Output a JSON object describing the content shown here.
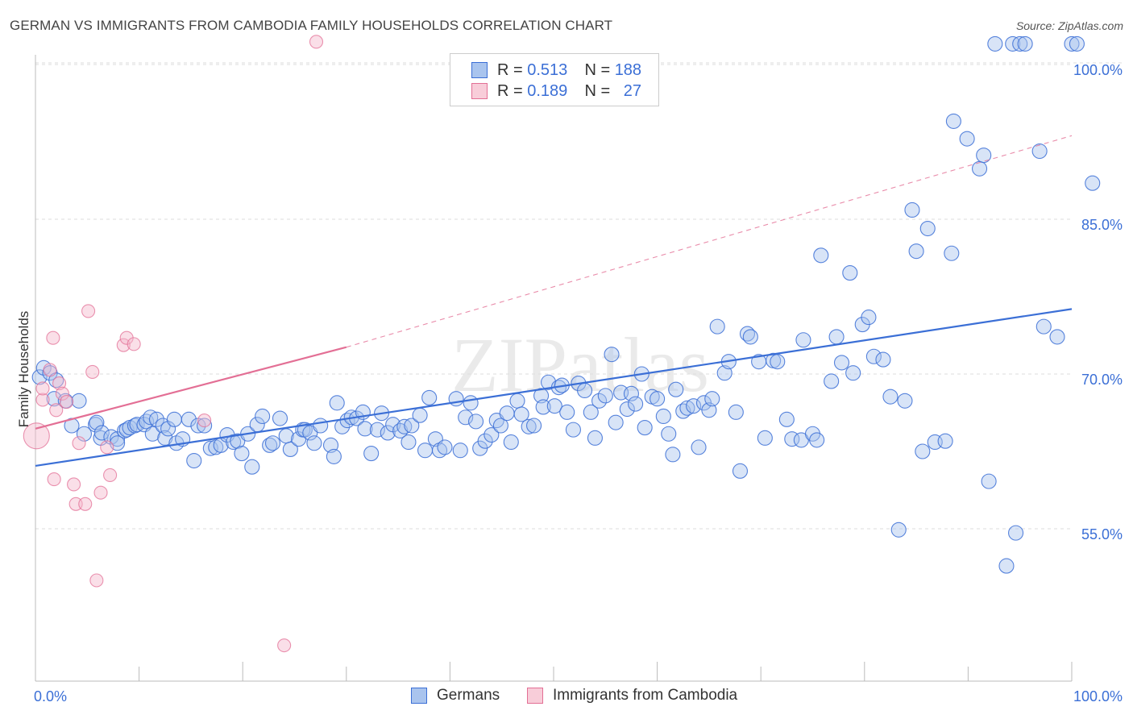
{
  "title": "GERMAN VS IMMIGRANTS FROM CAMBODIA FAMILY HOUSEHOLDS CORRELATION CHART",
  "source": "Source: ZipAtlas.com",
  "watermark": "ZIPatlas",
  "legend": {
    "r_label": "R =",
    "n_label": "N =",
    "germans": {
      "r": "0.513",
      "n": "188"
    },
    "cambodia": {
      "r": "0.189",
      "n": "27"
    }
  },
  "bottom_legend": {
    "germans": "Germans",
    "cambodia": "Immigrants from Cambodia"
  },
  "colors": {
    "blue": "#3b6fd6",
    "blue_fill": "#a9c4ee",
    "pink": "#e36f95",
    "pink_fill": "#f4b8cb",
    "grid": "#dddddd"
  },
  "chart_data": {
    "type": "scatter",
    "title": "GERMAN VS IMMIGRANTS FROM CAMBODIA FAMILY HOUSEHOLDS CORRELATION CHART",
    "xlabel": "",
    "ylabel": "Family Households",
    "xlim": [
      0,
      100
    ],
    "ylim": [
      40,
      102
    ],
    "x_tick_labels": [
      "0.0%",
      "100.0%"
    ],
    "y_ticks": [
      55,
      70,
      85,
      100
    ],
    "y_tick_labels": [
      "55.0%",
      "70.0%",
      "85.0%",
      "100.0%"
    ],
    "series": [
      {
        "name": "Germans",
        "color": "#3b6fd6",
        "trend": {
          "x": [
            0,
            100
          ],
          "y": [
            61.1,
            76.3
          ]
        },
        "points": [
          [
            0.4,
            69.7
          ],
          [
            0.8,
            70.6
          ],
          [
            1.4,
            70.1
          ],
          [
            1.8,
            67.6
          ],
          [
            2.0,
            69.4
          ],
          [
            2.9,
            67.4
          ],
          [
            3.5,
            65.0
          ],
          [
            4.2,
            67.4
          ],
          [
            4.7,
            64.2
          ],
          [
            5.8,
            65.1
          ],
          [
            5.9,
            65.3
          ],
          [
            6.3,
            63.8
          ],
          [
            6.4,
            64.3
          ],
          [
            7.3,
            63.9
          ],
          [
            7.9,
            63.7
          ],
          [
            7.9,
            63.3
          ],
          [
            8.6,
            64.5
          ],
          [
            8.8,
            64.6
          ],
          [
            9.1,
            64.8
          ],
          [
            9.6,
            65.0
          ],
          [
            9.8,
            65.1
          ],
          [
            10.5,
            65.1
          ],
          [
            10.7,
            65.4
          ],
          [
            11.1,
            65.8
          ],
          [
            11.3,
            64.2
          ],
          [
            11.7,
            65.6
          ],
          [
            12.3,
            65.0
          ],
          [
            12.5,
            63.8
          ],
          [
            12.8,
            64.7
          ],
          [
            13.4,
            65.6
          ],
          [
            13.6,
            63.3
          ],
          [
            14.2,
            63.7
          ],
          [
            14.8,
            65.6
          ],
          [
            15.3,
            61.6
          ],
          [
            15.7,
            65.0
          ],
          [
            16.3,
            65.0
          ],
          [
            16.9,
            62.8
          ],
          [
            17.4,
            62.9
          ],
          [
            17.9,
            63.1
          ],
          [
            18.5,
            64.1
          ],
          [
            19.1,
            63.4
          ],
          [
            19.5,
            63.5
          ],
          [
            19.9,
            62.3
          ],
          [
            20.5,
            64.2
          ],
          [
            20.9,
            61.0
          ],
          [
            21.4,
            65.1
          ],
          [
            21.9,
            65.9
          ],
          [
            22.6,
            63.1
          ],
          [
            22.9,
            63.3
          ],
          [
            23.6,
            65.7
          ],
          [
            24.2,
            64.0
          ],
          [
            24.6,
            62.7
          ],
          [
            25.4,
            63.7
          ],
          [
            25.8,
            64.6
          ],
          [
            26.0,
            64.6
          ],
          [
            26.5,
            64.3
          ],
          [
            26.9,
            63.3
          ],
          [
            27.5,
            65.0
          ],
          [
            28.5,
            63.1
          ],
          [
            28.8,
            62.0
          ],
          [
            29.1,
            67.2
          ],
          [
            29.6,
            64.9
          ],
          [
            30.1,
            65.5
          ],
          [
            30.5,
            65.8
          ],
          [
            31.0,
            65.7
          ],
          [
            31.6,
            66.3
          ],
          [
            31.8,
            64.7
          ],
          [
            32.4,
            62.3
          ],
          [
            33.0,
            64.6
          ],
          [
            33.4,
            66.2
          ],
          [
            34.0,
            64.3
          ],
          [
            34.5,
            65.1
          ],
          [
            35.2,
            64.5
          ],
          [
            35.6,
            64.9
          ],
          [
            36.0,
            63.4
          ],
          [
            36.3,
            65.0
          ],
          [
            37.1,
            66.0
          ],
          [
            37.6,
            62.6
          ],
          [
            38.0,
            67.7
          ],
          [
            38.6,
            63.7
          ],
          [
            39.0,
            62.6
          ],
          [
            39.5,
            62.9
          ],
          [
            40.6,
            67.6
          ],
          [
            41.0,
            62.6
          ],
          [
            41.5,
            65.8
          ],
          [
            42.0,
            67.2
          ],
          [
            42.5,
            65.4
          ],
          [
            42.9,
            62.8
          ],
          [
            43.4,
            63.5
          ],
          [
            44.0,
            64.1
          ],
          [
            44.5,
            65.5
          ],
          [
            44.9,
            65.0
          ],
          [
            45.5,
            66.2
          ],
          [
            45.9,
            63.4
          ],
          [
            46.5,
            67.4
          ],
          [
            46.9,
            66.1
          ],
          [
            47.6,
            64.9
          ],
          [
            48.1,
            65.0
          ],
          [
            48.8,
            67.9
          ],
          [
            49.0,
            66.8
          ],
          [
            49.5,
            69.2
          ],
          [
            50.1,
            66.9
          ],
          [
            50.5,
            68.7
          ],
          [
            50.8,
            68.9
          ],
          [
            51.3,
            66.3
          ],
          [
            51.9,
            64.6
          ],
          [
            52.4,
            69.1
          ],
          [
            53.0,
            68.4
          ],
          [
            53.6,
            66.3
          ],
          [
            54.0,
            63.8
          ],
          [
            54.4,
            67.4
          ],
          [
            55.0,
            67.9
          ],
          [
            55.6,
            71.9
          ],
          [
            56.0,
            65.3
          ],
          [
            56.5,
            68.2
          ],
          [
            57.1,
            66.6
          ],
          [
            57.5,
            68.1
          ],
          [
            57.9,
            67.1
          ],
          [
            58.5,
            70.0
          ],
          [
            58.8,
            64.8
          ],
          [
            59.5,
            67.8
          ],
          [
            60.0,
            67.6
          ],
          [
            60.6,
            65.9
          ],
          [
            61.1,
            64.2
          ],
          [
            61.5,
            62.2
          ],
          [
            61.8,
            68.5
          ],
          [
            62.5,
            66.4
          ],
          [
            62.9,
            66.7
          ],
          [
            63.5,
            66.9
          ],
          [
            64.0,
            62.9
          ],
          [
            64.5,
            67.2
          ],
          [
            65.0,
            66.5
          ],
          [
            65.3,
            67.6
          ],
          [
            65.8,
            74.6
          ],
          [
            66.5,
            70.1
          ],
          [
            66.9,
            71.2
          ],
          [
            67.6,
            66.3
          ],
          [
            68.0,
            60.6
          ],
          [
            68.7,
            73.9
          ],
          [
            69.0,
            73.6
          ],
          [
            69.8,
            71.2
          ],
          [
            70.4,
            63.8
          ],
          [
            71.2,
            71.3
          ],
          [
            71.6,
            71.2
          ],
          [
            72.5,
            65.6
          ],
          [
            73.0,
            63.7
          ],
          [
            73.9,
            63.6
          ],
          [
            74.1,
            73.3
          ],
          [
            75.0,
            64.2
          ],
          [
            75.4,
            63.6
          ],
          [
            75.8,
            81.5
          ],
          [
            76.8,
            69.3
          ],
          [
            77.3,
            73.6
          ],
          [
            77.8,
            71.1
          ],
          [
            78.6,
            79.8
          ],
          [
            78.9,
            70.1
          ],
          [
            79.8,
            74.8
          ],
          [
            80.4,
            75.5
          ],
          [
            80.9,
            71.7
          ],
          [
            81.8,
            71.4
          ],
          [
            82.5,
            67.8
          ],
          [
            83.3,
            54.9
          ],
          [
            83.9,
            67.4
          ],
          [
            84.6,
            85.9
          ],
          [
            85.0,
            81.9
          ],
          [
            85.6,
            62.5
          ],
          [
            86.1,
            84.1
          ],
          [
            86.8,
            63.4
          ],
          [
            87.8,
            63.5
          ],
          [
            88.4,
            81.7
          ],
          [
            88.6,
            94.5
          ],
          [
            89.9,
            92.8
          ],
          [
            91.1,
            89.9
          ],
          [
            91.5,
            91.2
          ],
          [
            92.0,
            59.6
          ],
          [
            92.6,
            102.0
          ],
          [
            93.7,
            51.4
          ],
          [
            94.3,
            102.0
          ],
          [
            94.6,
            54.6
          ],
          [
            95.0,
            102.0
          ],
          [
            95.5,
            102.0
          ],
          [
            96.9,
            91.6
          ],
          [
            97.3,
            74.6
          ],
          [
            98.6,
            73.6
          ],
          [
            100.0,
            102.0
          ],
          [
            100.5,
            102.0
          ],
          [
            102.0,
            88.5
          ]
        ]
      },
      {
        "name": "Immigrants from Cambodia",
        "color": "#e36f95",
        "trend": {
          "x": [
            0,
            30
          ],
          "y": [
            64.7,
            72.6
          ]
        },
        "trend_dashed": {
          "x": [
            30,
            100
          ],
          "y": [
            72.6,
            93.1
          ]
        },
        "points": [
          [
            0.1,
            64.0
          ],
          [
            0.7,
            67.5
          ],
          [
            0.7,
            68.6
          ],
          [
            1.4,
            70.4
          ],
          [
            1.7,
            73.5
          ],
          [
            1.8,
            59.8
          ],
          [
            2.0,
            66.5
          ],
          [
            2.3,
            69.1
          ],
          [
            2.6,
            68.1
          ],
          [
            3.0,
            67.3
          ],
          [
            3.7,
            59.3
          ],
          [
            3.9,
            57.4
          ],
          [
            4.2,
            63.3
          ],
          [
            4.8,
            57.4
          ],
          [
            5.1,
            76.1
          ],
          [
            5.5,
            70.2
          ],
          [
            5.9,
            50.0
          ],
          [
            6.3,
            58.5
          ],
          [
            6.9,
            62.9
          ],
          [
            7.2,
            60.2
          ],
          [
            8.5,
            72.8
          ],
          [
            8.8,
            73.5
          ],
          [
            9.5,
            72.9
          ],
          [
            16.3,
            65.5
          ],
          [
            24.0,
            43.7
          ],
          [
            27.1,
            102.2
          ]
        ]
      }
    ]
  }
}
